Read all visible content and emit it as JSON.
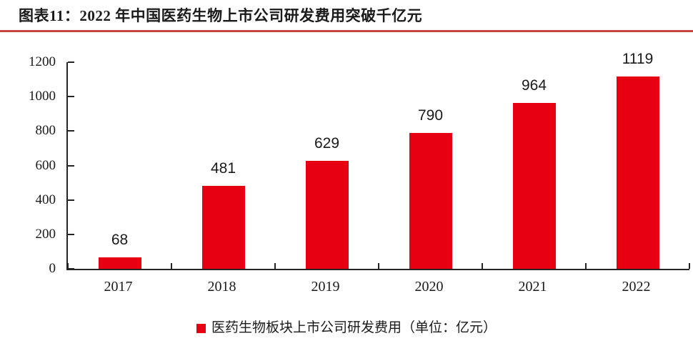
{
  "header": {
    "title": "图表11：2022 年中国医药生物上市公司研发费用突破千亿元"
  },
  "colors": {
    "bar": "#e60012",
    "title_rule": "#c9453f",
    "axis": "#262626",
    "text": "#1a1a1a"
  },
  "chart_data": {
    "type": "bar",
    "categories": [
      "2017",
      "2018",
      "2019",
      "2020",
      "2021",
      "2022"
    ],
    "values": [
      68,
      481,
      629,
      790,
      964,
      1119
    ],
    "title": "图表11：2022 年中国医药生物上市公司研发费用突破千亿元",
    "xlabel": "",
    "ylabel": "",
    "ylim": [
      0,
      1200
    ],
    "yticks": [
      0,
      200,
      400,
      600,
      800,
      1000,
      1200
    ],
    "grid": false,
    "data_labels": true,
    "legend_entries": [
      "医药生物板块上市公司研发费用（单位：亿元）"
    ],
    "legend_position": "bottom",
    "bar_color": "#e60012"
  },
  "legend": {
    "label": "医药生物板块上市公司研发费用（单位：亿元）"
  }
}
